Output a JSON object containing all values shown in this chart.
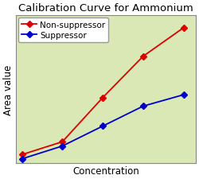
{
  "title": "Calibration Curve for Ammonium",
  "xlabel": "Concentration",
  "ylabel": "Area value",
  "background_color": "#d9e8b4",
  "fig_background": "#ffffff",
  "non_suppressor": {
    "x": [
      0,
      1,
      2,
      3,
      4
    ],
    "y": [
      0.04,
      0.13,
      0.44,
      0.73,
      0.93
    ],
    "color": "#dd0000",
    "label": "Non-suppressor",
    "marker": "D",
    "markersize": 4
  },
  "suppressor": {
    "x": [
      0,
      1,
      2,
      3,
      4
    ],
    "y": [
      0.01,
      0.1,
      0.24,
      0.38,
      0.46
    ],
    "color": "#0000cc",
    "label": "Suppressor",
    "marker": "D",
    "markersize": 4
  },
  "grid_color": "#aaaaaa",
  "grid_linestyle": "--",
  "title_fontsize": 9.5,
  "axis_label_fontsize": 8.5,
  "legend_fontsize": 7.5,
  "ylim": [
    -0.02,
    1.02
  ],
  "xlim": [
    -0.15,
    4.3
  ],
  "linewidth": 1.3
}
